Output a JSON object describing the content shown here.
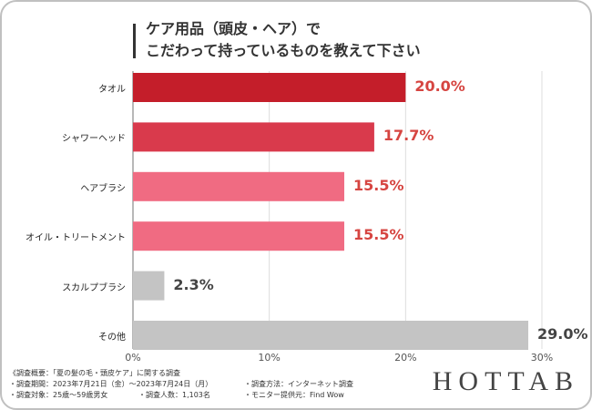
{
  "title": {
    "line1": "ケア用品（頭皮・ヘア）で",
    "line2": "こだわって持っているものを教えて下さい"
  },
  "chart_data": {
    "type": "bar",
    "orientation": "horizontal",
    "title": "ケア用品（頭皮・ヘア）でこだわって持っているものを教えて下さい",
    "categories": [
      "タオル",
      "シャワーヘッド",
      "ヘアブラシ",
      "オイル・トリートメント",
      "スカルプブラシ",
      "その他"
    ],
    "values": [
      20.0,
      17.7,
      15.5,
      15.5,
      2.3,
      29.0
    ],
    "value_labels": [
      "20.0%",
      "17.7%",
      "15.5%",
      "15.5%",
      "2.3%",
      "29.0%"
    ],
    "bar_colors": [
      "#c41e2a",
      "#d93a4c",
      "#f06b82",
      "#f06b82",
      "#c4c4c4",
      "#c4c4c4"
    ],
    "label_colors": [
      "#d64541",
      "#d64541",
      "#d64541",
      "#d64541",
      "#444444",
      "#444444"
    ],
    "xlim": [
      0,
      30
    ],
    "ticks": [
      0,
      10,
      20,
      30
    ],
    "tick_labels": [
      "0%",
      "10%",
      "20%",
      "30%"
    ],
    "xlabel": "",
    "ylabel": "",
    "grid": true
  },
  "notes": {
    "summary": "《調査概要：「夏の髪の毛・頭皮ケア」に関する調査",
    "period": "・調査期間：2023年7月21日（金）～2023年7月24日（月）",
    "method": "・調査方法：インターネット調査",
    "target": "・調査対象：25歳～59歳男女",
    "count": "・調査人数：1,103名",
    "provider": "・モニター提供元：Find Wow"
  },
  "brand": "HOTTAB"
}
